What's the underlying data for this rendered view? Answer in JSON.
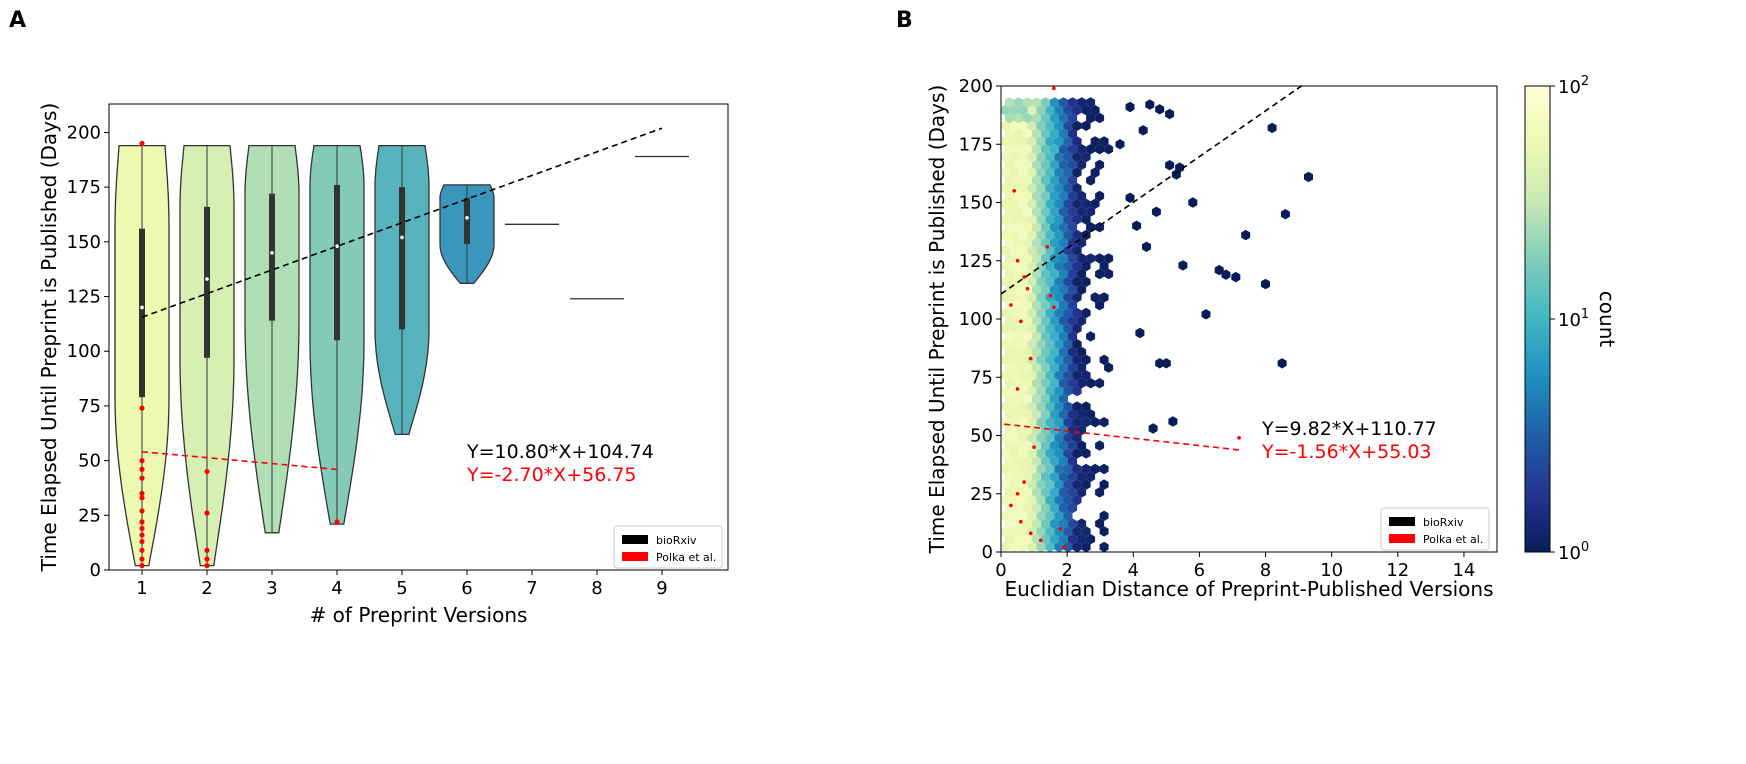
{
  "panel_labels": {
    "a": "A",
    "b": "B"
  },
  "colors": {
    "biorxiv": "#000000",
    "polka": "#ff0000"
  },
  "chart_data": [
    {
      "type": "violin",
      "panel": "A",
      "xlabel": "# of Preprint Versions",
      "ylabel": "Time Elapsed Until Preprint is Published (Days)",
      "categories": [
        "1",
        "2",
        "3",
        "4",
        "5",
        "6",
        "7",
        "8",
        "9"
      ],
      "yticks": [
        0,
        25,
        50,
        75,
        100,
        125,
        150,
        175,
        200
      ],
      "ylim": [
        0,
        213
      ],
      "violins": [
        {
          "x": "1",
          "min": 2,
          "max": 194,
          "q1": 79,
          "median": 120,
          "q3": 156,
          "color": "#edf8b1"
        },
        {
          "x": "2",
          "min": 2,
          "max": 194,
          "q1": 97,
          "median": 133,
          "q3": 166,
          "color": "#d6efb3"
        },
        {
          "x": "3",
          "min": 17,
          "max": 194,
          "q1": 114,
          "median": 145,
          "q3": 172,
          "color": "#b1dfb5"
        },
        {
          "x": "4",
          "min": 21,
          "max": 194,
          "q1": 105,
          "median": 148,
          "q3": 176,
          "color": "#84cab9"
        },
        {
          "x": "5",
          "min": 62,
          "max": 194,
          "q1": 110,
          "median": 152,
          "q3": 175,
          "color": "#57b3be"
        },
        {
          "x": "6",
          "min": 131,
          "max": 176,
          "q1": 149,
          "median": 161,
          "q3": 170,
          "color": "#3a96bc"
        },
        {
          "x": "7",
          "value": 158
        },
        {
          "x": "8",
          "value": 124
        },
        {
          "x": "9",
          "value": 189
        }
      ],
      "polka_points": [
        {
          "x": "1",
          "values": [
            2,
            5,
            9,
            13,
            16,
            19,
            22,
            27,
            33,
            35,
            42,
            46,
            50,
            74,
            195
          ]
        },
        {
          "x": "2",
          "values": [
            2,
            5,
            9,
            26,
            45
          ]
        },
        {
          "x": "4",
          "values": [
            22
          ]
        }
      ],
      "fit_lines": [
        {
          "name": "bioRxiv",
          "slope": 10.8,
          "intercept": 104.74,
          "x_range": [
            1,
            9
          ],
          "style": "dashed"
        },
        {
          "name": "Polka et al.",
          "slope": -2.7,
          "intercept": 56.75,
          "x_range": [
            1,
            4
          ],
          "style": "dashed"
        }
      ],
      "equations": [
        "Y=10.80*X+104.74",
        "Y=-2.70*X+56.75"
      ],
      "legend": {
        "entries": [
          "bioRxiv",
          "Polka et al."
        ],
        "position": "lower-right"
      }
    },
    {
      "type": "hexbin",
      "panel": "B",
      "xlabel": "Euclidian Distance of Preprint-Published Versions",
      "ylabel": "Time Elapsed Until Preprint is Published (Days)",
      "xticks": [
        0,
        2,
        4,
        6,
        8,
        10,
        12,
        14
      ],
      "yticks": [
        0,
        25,
        50,
        75,
        100,
        125,
        150,
        175,
        200
      ],
      "xlim": [
        0,
        15
      ],
      "ylim": [
        0,
        200
      ],
      "colorbar": {
        "label": "count",
        "scale": "log",
        "ticks": [
          "10^0",
          "10^1",
          "10^2"
        ],
        "min": 1,
        "max": 100
      },
      "outliers": [
        [
          8.2,
          182
        ],
        [
          9.3,
          161
        ],
        [
          8.6,
          145
        ],
        [
          7.4,
          136
        ],
        [
          8,
          115
        ],
        [
          8.5,
          81
        ],
        [
          6.8,
          119
        ],
        [
          7.1,
          118
        ],
        [
          6.6,
          121
        ],
        [
          6.2,
          102
        ],
        [
          5.5,
          123
        ],
        [
          5.8,
          150
        ],
        [
          5.1,
          166
        ],
        [
          5.4,
          165
        ],
        [
          4.4,
          131
        ],
        [
          4.2,
          94
        ],
        [
          4.8,
          81
        ],
        [
          5.0,
          81
        ],
        [
          5.2,
          56
        ],
        [
          4.6,
          53
        ],
        [
          5.3,
          162
        ],
        [
          3.9,
          191
        ],
        [
          4.5,
          192
        ],
        [
          4.8,
          190
        ],
        [
          4.3,
          181
        ],
        [
          3.6,
          175
        ],
        [
          3.9,
          152
        ],
        [
          4.1,
          140
        ],
        [
          5.1,
          188
        ],
        [
          4.7,
          146
        ]
      ],
      "polka_points": [
        [
          0.4,
          155
        ],
        [
          0.5,
          125
        ],
        [
          0.7,
          118
        ],
        [
          0.8,
          113
        ],
        [
          0.3,
          106
        ],
        [
          0.6,
          99
        ],
        [
          0.9,
          83
        ],
        [
          0.5,
          70
        ],
        [
          1.4,
          131
        ],
        [
          1.5,
          110
        ],
        [
          1.6,
          105
        ],
        [
          0.5,
          25
        ],
        [
          0.3,
          20
        ],
        [
          0.6,
          13
        ],
        [
          0.9,
          8
        ],
        [
          1.2,
          5
        ],
        [
          1.8,
          10
        ],
        [
          1.9,
          2
        ],
        [
          1.0,
          45
        ],
        [
          7.2,
          49
        ],
        [
          0.7,
          30
        ],
        [
          1.6,
          199
        ]
      ],
      "fit_lines": [
        {
          "name": "bioRxiv",
          "slope": 9.82,
          "intercept": 110.77,
          "x_range": [
            0,
            9.1
          ],
          "style": "dashed"
        },
        {
          "name": "Polka et al.",
          "slope": -1.56,
          "intercept": 55.03,
          "x_range": [
            0.1,
            7.2
          ],
          "style": "dashed"
        }
      ],
      "equations": [
        "Y=9.82*X+110.77",
        "Y=-1.56*X+55.03"
      ],
      "legend": {
        "entries": [
          "bioRxiv",
          "Polka et al."
        ],
        "position": "lower-right"
      }
    }
  ]
}
